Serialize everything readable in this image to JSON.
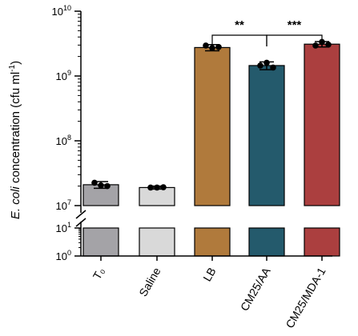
{
  "chart_data": {
    "type": "bar",
    "categories": [
      "T₀",
      "Saline",
      "LB",
      "CM25/AA",
      "CM25/MDA-1"
    ],
    "values": [
      21000000,
      19000000,
      2750000000,
      1450000000,
      3100000000
    ],
    "errors": [
      2500000,
      1000000,
      300000000,
      200000000,
      300000000
    ],
    "points": [
      [
        22500000,
        20500000,
        20000000
      ],
      [
        19000000,
        19000000,
        19200000
      ],
      [
        2950000000,
        2700000000,
        2800000000
      ],
      [
        1450000000,
        1600000000,
        1350000000
      ],
      [
        2950000000,
        3350000000,
        3050000000
      ]
    ],
    "colors": [
      "#a4a3a7",
      "#d9d9d9",
      "#b07a3c",
      "#245a6c",
      "#ab3f3f"
    ],
    "ylabel_italic": "E. coli",
    "ylabel_rest": " concentration (cfu ml",
    "ylabel_sup": "-1",
    "ylabel_end": ")",
    "yscale": "log, broken axis",
    "y_ticks_upper": [
      {
        "base": "10",
        "exp": "7",
        "value": 10000000
      },
      {
        "base": "10",
        "exp": "8",
        "value": 100000000
      },
      {
        "base": "10",
        "exp": "9",
        "value": 1000000000
      },
      {
        "base": "10",
        "exp": "10",
        "value": 10000000000
      }
    ],
    "y_ticks_lower": [
      {
        "base": "10",
        "exp": "1",
        "value": 10
      },
      {
        "base": "10",
        "exp": "0",
        "value": 1
      }
    ],
    "significance": [
      {
        "from": 2,
        "to": 3,
        "label": "**"
      },
      {
        "from": 3,
        "to": 4,
        "label": "***"
      }
    ]
  }
}
